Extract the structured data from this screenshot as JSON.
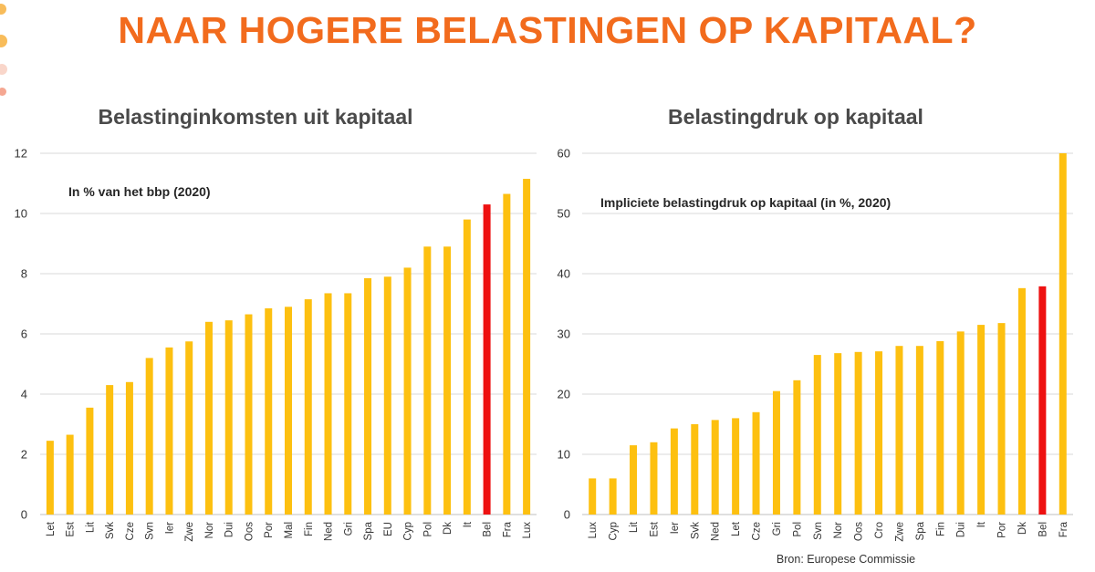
{
  "header": {
    "title": "NAAR HOGERE BELASTINGEN OP KAPITAAL?"
  },
  "colors": {
    "title": "#f26b1d",
    "bar": "#fdc010",
    "highlight": "#ee1111",
    "decoration": [
      "#f6a623",
      "#f7c8b8",
      "#f28a6e"
    ]
  },
  "source_note": "Bron: Europese Commissie",
  "chart_data": [
    {
      "type": "bar",
      "title": "Belastinginkomsten uit kapitaal",
      "annotation": "In % van het bbp (2020)",
      "xlabel": "",
      "ylabel": "",
      "ylim": [
        0,
        12
      ],
      "yticks": [
        0,
        2,
        4,
        6,
        8,
        10,
        12
      ],
      "grid": true,
      "highlight": "Bel",
      "categories": [
        "Let",
        "Est",
        "Lit",
        "Svk",
        "Cze",
        "Svn",
        "Ier",
        "Zwe",
        "Nor",
        "Dui",
        "Oos",
        "Por",
        "Mal",
        "Fin",
        "Ned",
        "Gri",
        "Spa",
        "EU",
        "Cyp",
        "Pol",
        "Dk",
        "It",
        "Bel",
        "Fra",
        "Lux"
      ],
      "values": [
        2.45,
        2.65,
        3.55,
        4.3,
        4.4,
        5.2,
        5.55,
        5.75,
        6.4,
        6.45,
        6.65,
        6.85,
        6.9,
        7.15,
        7.35,
        7.35,
        7.85,
        7.9,
        8.2,
        8.9,
        8.9,
        9.8,
        10.3,
        10.65,
        11.15
      ]
    },
    {
      "type": "bar",
      "title": "Belastingdruk op kapitaal",
      "annotation": "Impliciete belastingdruk op kapitaal (in %, 2020)",
      "xlabel": "",
      "ylabel": "",
      "ylim": [
        0,
        60
      ],
      "yticks": [
        0,
        10,
        20,
        30,
        40,
        50,
        60
      ],
      "grid": true,
      "highlight": "Bel",
      "categories": [
        "Lux",
        "Cyp",
        "Lit",
        "Est",
        "Ier",
        "Svk",
        "Ned",
        "Let",
        "Cze",
        "Gri",
        "Pol",
        "Svn",
        "Nor",
        "Oos",
        "Cro",
        "Zwe",
        "Spa",
        "Fin",
        "Dui",
        "It",
        "Por",
        "Dk",
        "Bel",
        "Fra"
      ],
      "values": [
        6.0,
        6.0,
        11.5,
        12.0,
        14.3,
        15.0,
        15.7,
        16.0,
        17.0,
        20.5,
        22.3,
        26.5,
        26.8,
        27.0,
        27.1,
        28.0,
        28.0,
        28.8,
        30.4,
        31.5,
        31.8,
        37.6,
        37.9,
        60.0
      ]
    }
  ]
}
